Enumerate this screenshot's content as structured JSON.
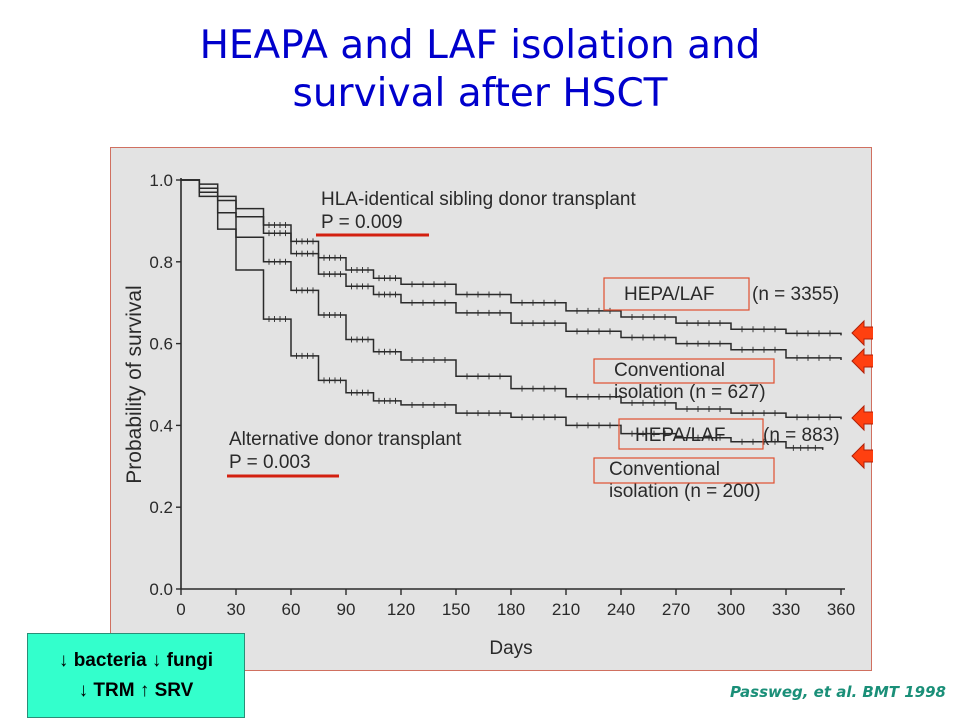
{
  "slide": {
    "title_lines": [
      "HEAPA and LAF isolation and",
      "survival after HSCT"
    ],
    "citation": "Passweg, et al. BMT 1998",
    "callout": {
      "line1_a": "bacteria",
      "line1_b": "fungi",
      "line2_a": "TRM",
      "line2_b": "SRV",
      "down_arrow_glyph": "↓",
      "up_arrow_glyph": "↑"
    },
    "colors": {
      "title": "#0000cc",
      "underline_red": "#d32010",
      "box_outline": "#e05030",
      "arrow_fill": "#ff4010",
      "callout_bg": "#33ffcc",
      "citation": "#1a8f78"
    }
  },
  "chart_data": {
    "type": "line",
    "xlabel": "Days",
    "ylabel": "Probability of survival",
    "xlim": [
      0,
      360
    ],
    "ylim": [
      0,
      1.0
    ],
    "x_ticks": [
      "0",
      "30",
      "60",
      "90",
      "120",
      "150",
      "180",
      "210",
      "240",
      "270",
      "300",
      "330",
      "360"
    ],
    "y_ticks": [
      "0.0",
      "0.2",
      "0.4",
      "0.6",
      "0.8",
      "1.0"
    ],
    "grid": false,
    "groups": [
      {
        "heading": "HLA-identical sibling donor transplant",
        "p_value": "P = 0.009"
      },
      {
        "heading": "Alternative donor transplant",
        "p_value": "P = 0.003"
      }
    ],
    "series": [
      {
        "name": "HEPA/LAF",
        "n_label": "(n = 3355)",
        "x": [
          0,
          10,
          20,
          30,
          45,
          60,
          75,
          90,
          105,
          120,
          150,
          180,
          210,
          240,
          270,
          300,
          330,
          360
        ],
        "y": [
          1.0,
          0.99,
          0.96,
          0.93,
          0.89,
          0.85,
          0.81,
          0.78,
          0.76,
          0.745,
          0.72,
          0.7,
          0.68,
          0.665,
          0.65,
          0.635,
          0.625,
          0.62
        ]
      },
      {
        "name": "Conventional isolation",
        "n_label": "(n = 627)",
        "x": [
          0,
          10,
          20,
          30,
          45,
          60,
          75,
          90,
          105,
          120,
          150,
          180,
          210,
          240,
          270,
          300,
          330,
          360
        ],
        "y": [
          1.0,
          0.98,
          0.95,
          0.91,
          0.87,
          0.82,
          0.77,
          0.74,
          0.72,
          0.7,
          0.675,
          0.65,
          0.63,
          0.615,
          0.6,
          0.585,
          0.565,
          0.56
        ]
      },
      {
        "name": "HEPA/LAF",
        "n_label": "(n = 883)",
        "x": [
          0,
          10,
          20,
          30,
          45,
          60,
          75,
          90,
          105,
          120,
          150,
          180,
          210,
          240,
          270,
          300,
          330,
          360
        ],
        "y": [
          1.0,
          0.97,
          0.92,
          0.86,
          0.8,
          0.73,
          0.67,
          0.61,
          0.58,
          0.56,
          0.52,
          0.49,
          0.47,
          0.455,
          0.44,
          0.43,
          0.42,
          0.415
        ]
      },
      {
        "name": "Conventional isolation",
        "n_label": "(n = 200)",
        "x": [
          0,
          10,
          20,
          30,
          45,
          60,
          75,
          90,
          105,
          120,
          150,
          180,
          210,
          240,
          270,
          300,
          330,
          350
        ],
        "y": [
          1.0,
          0.96,
          0.88,
          0.78,
          0.66,
          0.57,
          0.51,
          0.48,
          0.46,
          0.45,
          0.43,
          0.42,
          0.4,
          0.38,
          0.37,
          0.36,
          0.345,
          0.34
        ]
      }
    ]
  }
}
